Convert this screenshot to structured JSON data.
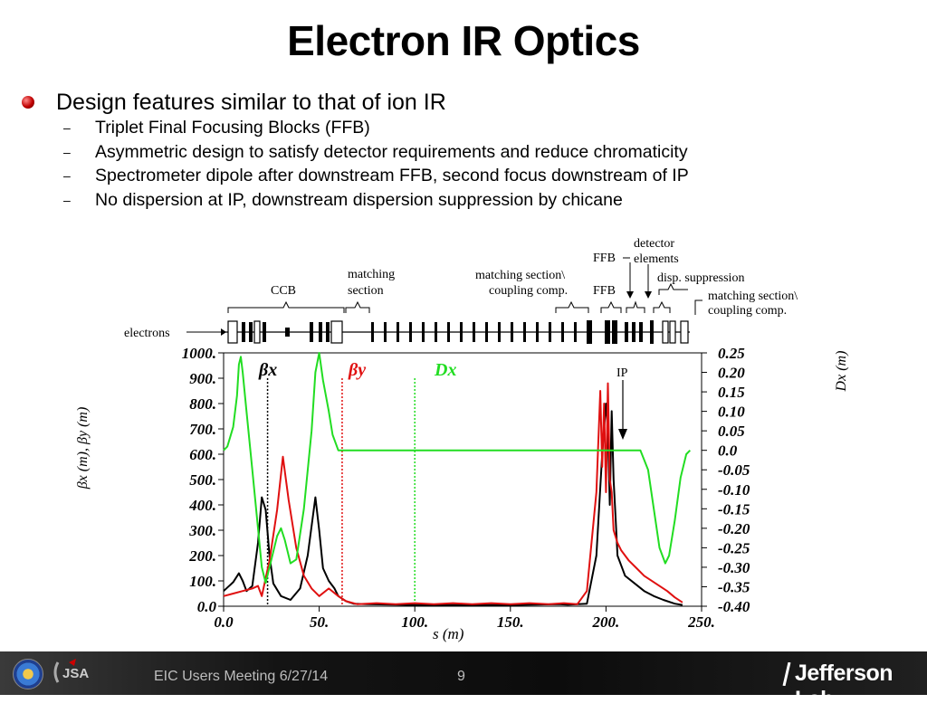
{
  "slide": {
    "title": "Electron IR Optics",
    "bullet_main": "Design features similar to that of ion IR",
    "sub_bullets": [
      "Triplet Final Focusing Blocks (FFB)",
      "Asymmetric design to satisfy detector requirements and reduce chromaticity",
      "Spectrometer dipole after downstream FFB, second focus downstream of IP",
      "No dispersion at IP, downstream dispersion suppression by chicane"
    ],
    "sub_bullet_marker": "–"
  },
  "lattice_labels": {
    "electrons": "electrons",
    "ccb": "CCB",
    "matching_section": [
      "matching",
      "section"
    ],
    "matching_coupling_1": [
      "matching section\\",
      "coupling comp."
    ],
    "ffb_1": "FFB",
    "ffb_2": "FFB",
    "detector_elements": [
      "detector",
      "elements"
    ],
    "disp_suppression": "disp. suppression",
    "matching_coupling_2": [
      "matching section\\",
      "coupling comp."
    ],
    "ip": "IP"
  },
  "chart_data": {
    "type": "line",
    "xlabel": "s (m)",
    "ylabel_left": "βx (m), βy (m)",
    "ylabel_right": "Dx (m)",
    "xlim": [
      0,
      250
    ],
    "ylim_left": [
      0,
      1000
    ],
    "ylim_right": [
      -0.4,
      0.25
    ],
    "x_ticks": [
      "0.0",
      "50.",
      "100.",
      "150.",
      "200.",
      "250."
    ],
    "y_left_ticks": [
      "1000.",
      "900.",
      "800.",
      "700.",
      "600.",
      "500.",
      "400.",
      "300.",
      "200.",
      "100.",
      "0.0"
    ],
    "y_right_ticks": [
      "0.25",
      "0.20",
      "0.15",
      "0.10",
      "0.05",
      "0.0",
      "-0.05",
      "-0.10",
      "-0.15",
      "-0.20",
      "-0.25",
      "-0.30",
      "-0.35",
      "-0.40"
    ],
    "legend": [
      {
        "name": "βx",
        "color": "#000000"
      },
      {
        "name": "βy",
        "color": "#e01010"
      },
      {
        "name": "Dx",
        "color": "#22dd22"
      }
    ],
    "series": [
      {
        "name": "βx",
        "color": "#000000",
        "points": [
          [
            0,
            60
          ],
          [
            5,
            95
          ],
          [
            8,
            130
          ],
          [
            10,
            100
          ],
          [
            12,
            60
          ],
          [
            15,
            80
          ],
          [
            18,
            250
          ],
          [
            20,
            430
          ],
          [
            22,
            380
          ],
          [
            24,
            200
          ],
          [
            26,
            90
          ],
          [
            30,
            40
          ],
          [
            35,
            25
          ],
          [
            40,
            70
          ],
          [
            44,
            200
          ],
          [
            48,
            430
          ],
          [
            50,
            300
          ],
          [
            52,
            150
          ],
          [
            55,
            100
          ],
          [
            58,
            70
          ],
          [
            60,
            40
          ],
          [
            64,
            20
          ],
          [
            68,
            10
          ],
          [
            75,
            8
          ],
          [
            100,
            5
          ],
          [
            150,
            5
          ],
          [
            175,
            8
          ],
          [
            180,
            6
          ],
          [
            190,
            10
          ],
          [
            195,
            200
          ],
          [
            198,
            600
          ],
          [
            200,
            800
          ],
          [
            201,
            700
          ],
          [
            202,
            400
          ],
          [
            203,
            770
          ],
          [
            204,
            500
          ],
          [
            205,
            350
          ],
          [
            206,
            200
          ],
          [
            208,
            160
          ],
          [
            210,
            120
          ],
          [
            215,
            90
          ],
          [
            220,
            60
          ],
          [
            225,
            40
          ],
          [
            230,
            25
          ],
          [
            236,
            10
          ],
          [
            240,
            5
          ]
        ]
      },
      {
        "name": "βy",
        "color": "#e01010",
        "points": [
          [
            0,
            40
          ],
          [
            5,
            50
          ],
          [
            10,
            60
          ],
          [
            15,
            70
          ],
          [
            18,
            80
          ],
          [
            20,
            40
          ],
          [
            24,
            180
          ],
          [
            28,
            380
          ],
          [
            31,
            590
          ],
          [
            34,
            420
          ],
          [
            38,
            230
          ],
          [
            42,
            120
          ],
          [
            46,
            70
          ],
          [
            50,
            40
          ],
          [
            55,
            70
          ],
          [
            60,
            40
          ],
          [
            64,
            20
          ],
          [
            70,
            8
          ],
          [
            80,
            12
          ],
          [
            90,
            8
          ],
          [
            100,
            12
          ],
          [
            110,
            8
          ],
          [
            120,
            12
          ],
          [
            130,
            8
          ],
          [
            140,
            12
          ],
          [
            150,
            8
          ],
          [
            160,
            12
          ],
          [
            170,
            8
          ],
          [
            178,
            12
          ],
          [
            185,
            8
          ],
          [
            190,
            60
          ],
          [
            195,
            450
          ],
          [
            197,
            850
          ],
          [
            198,
            550
          ],
          [
            199,
            800
          ],
          [
            200,
            450
          ],
          [
            201,
            880
          ],
          [
            202,
            500
          ],
          [
            203,
            450
          ],
          [
            204,
            300
          ],
          [
            206,
            250
          ],
          [
            208,
            220
          ],
          [
            212,
            180
          ],
          [
            216,
            150
          ],
          [
            220,
            120
          ],
          [
            226,
            90
          ],
          [
            232,
            60
          ],
          [
            236,
            35
          ],
          [
            240,
            15
          ]
        ]
      },
      {
        "name": "Dx",
        "color": "#22dd22",
        "points": [
          [
            0,
            0.0
          ],
          [
            2,
            0.01
          ],
          [
            5,
            0.06
          ],
          [
            7,
            0.14
          ],
          [
            8,
            0.22
          ],
          [
            9,
            0.24
          ],
          [
            10,
            0.2
          ],
          [
            12,
            0.1
          ],
          [
            15,
            -0.05
          ],
          [
            18,
            -0.2
          ],
          [
            20,
            -0.3
          ],
          [
            22,
            -0.34
          ],
          [
            25,
            -0.28
          ],
          [
            28,
            -0.22
          ],
          [
            30,
            -0.2
          ],
          [
            32,
            -0.23
          ],
          [
            35,
            -0.29
          ],
          [
            38,
            -0.28
          ],
          [
            42,
            -0.15
          ],
          [
            46,
            0.05
          ],
          [
            48,
            0.2
          ],
          [
            50,
            0.25
          ],
          [
            52,
            0.18
          ],
          [
            55,
            0.1
          ],
          [
            57,
            0.04
          ],
          [
            60,
            0.0
          ],
          [
            65,
            0.0
          ],
          [
            100,
            0.0
          ],
          [
            150,
            0.0
          ],
          [
            200,
            0.0
          ],
          [
            218,
            0.0
          ],
          [
            222,
            -0.05
          ],
          [
            225,
            -0.15
          ],
          [
            228,
            -0.25
          ],
          [
            231,
            -0.29
          ],
          [
            233,
            -0.27
          ],
          [
            236,
            -0.18
          ],
          [
            239,
            -0.07
          ],
          [
            242,
            -0.01
          ],
          [
            244,
            0.0
          ]
        ]
      }
    ],
    "markers": [
      {
        "series": "βx",
        "x": 23,
        "color": "#000000"
      },
      {
        "series": "βy",
        "x": 62,
        "color": "#e01010"
      },
      {
        "series": "Dx",
        "x": 100,
        "color": "#22dd22"
      }
    ]
  },
  "footer": {
    "meeting": "EIC Users Meeting 6/27/14",
    "page": "9",
    "lab": "Jefferson Lab",
    "logo_text": "JSA"
  },
  "colors": {
    "bx": "#000000",
    "by": "#e01010",
    "dx": "#22dd22",
    "bullet": "#c00000",
    "footer_bg": "#141414"
  }
}
